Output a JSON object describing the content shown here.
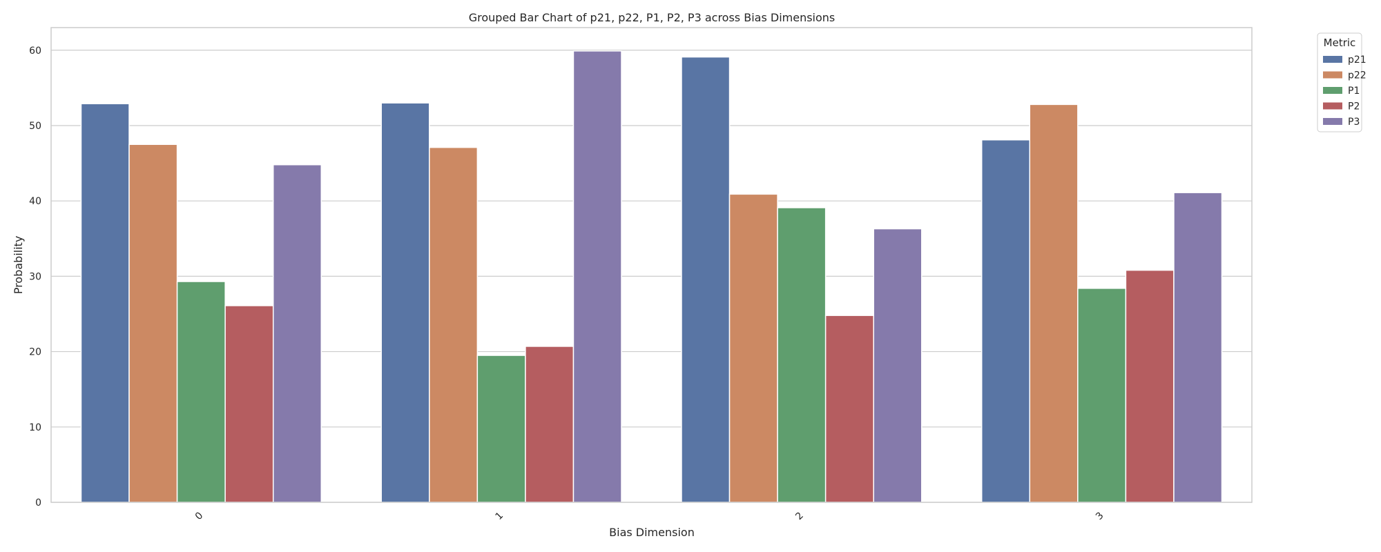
{
  "chart_data": {
    "type": "bar",
    "title": "Grouped Bar Chart of p21, p22, P1, P2, P3 across Bias Dimensions",
    "xlabel": "Bias Dimension",
    "ylabel": "Probability",
    "categories": [
      "0",
      "1",
      "2",
      "3"
    ],
    "ylim": [
      0,
      63
    ],
    "yticks": [
      0,
      10,
      20,
      30,
      40,
      50,
      60
    ],
    "grid": true,
    "legend": {
      "title": "Metric",
      "placement": "outside-top-right"
    },
    "series": [
      {
        "name": "p21",
        "color": "#5975a4",
        "values": [
          52.9,
          53.0,
          59.1,
          48.1
        ]
      },
      {
        "name": "p22",
        "color": "#cc8963",
        "values": [
          47.5,
          47.1,
          40.9,
          52.8
        ]
      },
      {
        "name": "P1",
        "color": "#5f9e6e",
        "values": [
          29.3,
          19.5,
          39.1,
          28.4
        ]
      },
      {
        "name": "P2",
        "color": "#b55d60",
        "values": [
          26.1,
          20.7,
          24.8,
          30.8
        ]
      },
      {
        "name": "P3",
        "color": "#857aab",
        "values": [
          44.8,
          59.9,
          36.3,
          41.1
        ]
      }
    ]
  }
}
